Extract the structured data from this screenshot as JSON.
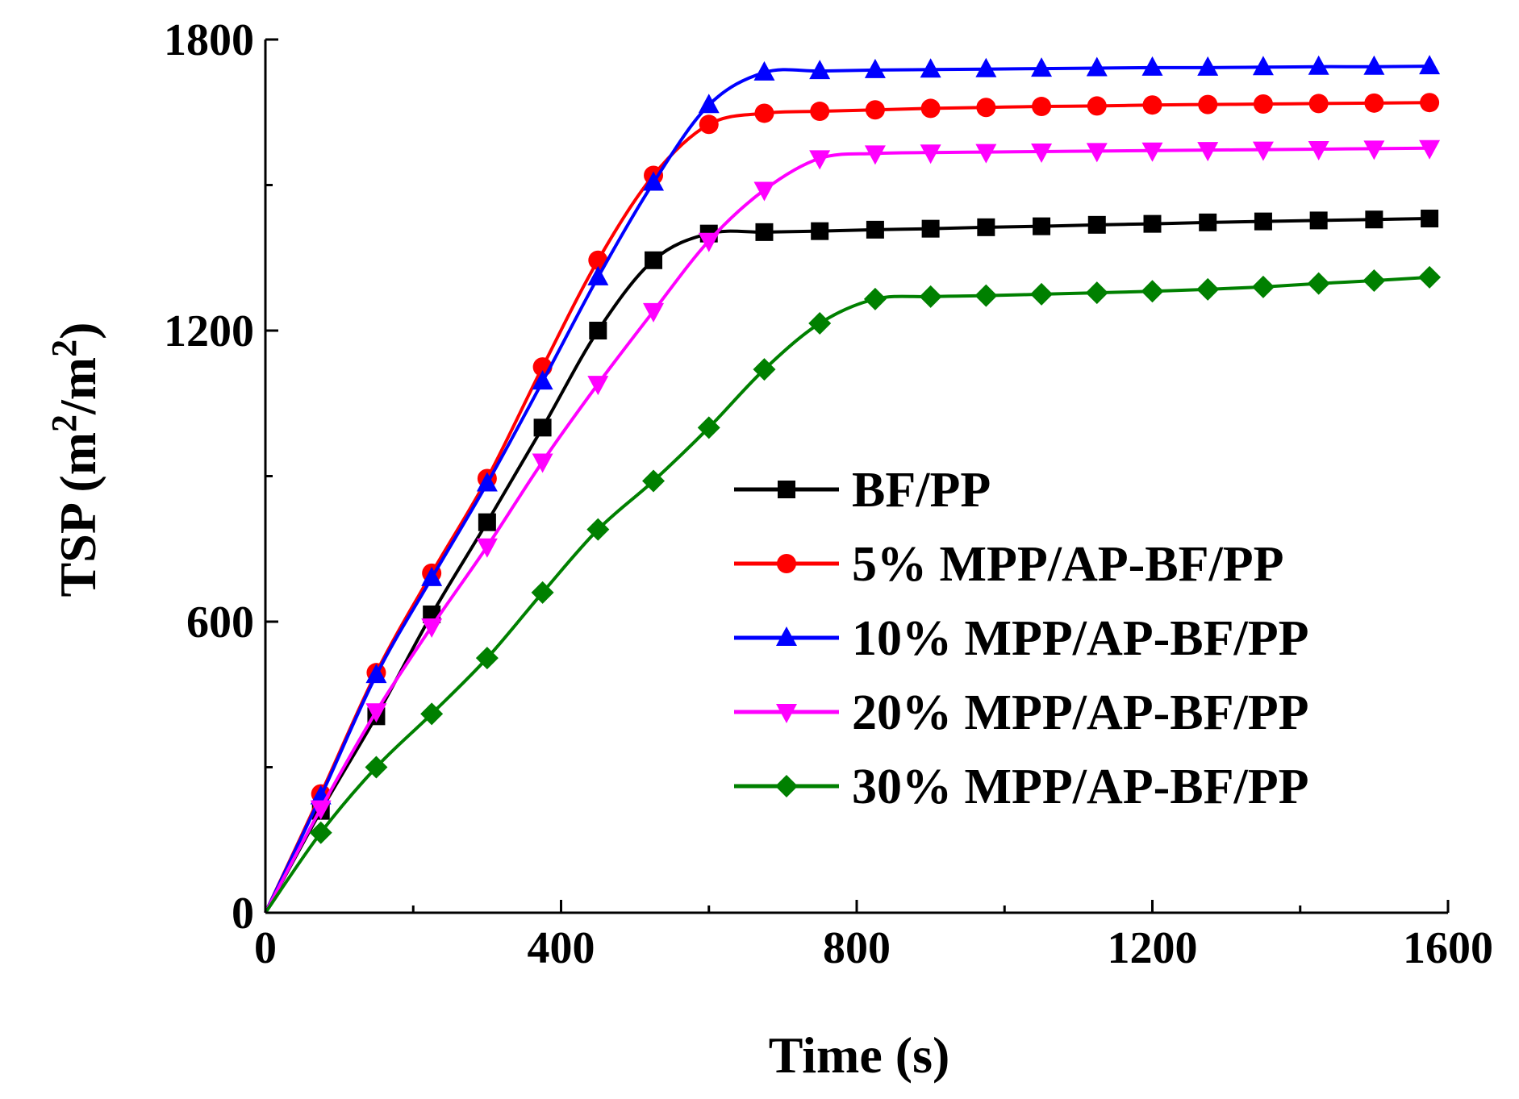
{
  "chart_data": {
    "type": "line",
    "title": "",
    "xlabel": "Time (s)",
    "ylabel_text": "TSP (m",
    "ylabel_sup1": "2",
    "ylabel_mid": "/m",
    "ylabel_sup2": "2",
    "ylabel_end": ")",
    "xlim": [
      0,
      1600
    ],
    "ylim": [
      0,
      1800
    ],
    "xticks": [
      0,
      400,
      800,
      1200,
      1600
    ],
    "xtick_labels": [
      "0",
      "400",
      "800",
      "1200",
      "1600"
    ],
    "yticks": [
      0,
      600,
      1200,
      1800
    ],
    "ytick_labels": [
      "0",
      "600",
      "1200",
      "1800"
    ],
    "grid": false,
    "legend_position": "center-right",
    "x": [
      0,
      75,
      150,
      225,
      300,
      375,
      450,
      525,
      600,
      675,
      750,
      825,
      900,
      975,
      1050,
      1125,
      1200,
      1275,
      1350,
      1425,
      1500,
      1575
    ],
    "series": [
      {
        "name": "BF/PP",
        "color": "#000000",
        "marker": "square",
        "values": [
          0,
          210,
          405,
          615,
          805,
          1000,
          1200,
          1345,
          1400,
          1403,
          1405,
          1408,
          1410,
          1413,
          1415,
          1418,
          1420,
          1423,
          1425,
          1427,
          1429,
          1431
        ]
      },
      {
        "name": "5% MPP/AP-BF/PP",
        "color": "#ff0000",
        "marker": "circle",
        "values": [
          0,
          245,
          495,
          700,
          895,
          1125,
          1345,
          1520,
          1625,
          1648,
          1652,
          1655,
          1658,
          1660,
          1662,
          1663,
          1665,
          1666,
          1667,
          1668,
          1669,
          1670
        ]
      },
      {
        "name": "10% MPP/AP-BF/PP",
        "color": "#0000ff",
        "marker": "triangle-up",
        "values": [
          0,
          240,
          490,
          690,
          885,
          1095,
          1310,
          1505,
          1665,
          1732,
          1735,
          1737,
          1738,
          1739,
          1740,
          1741,
          1742,
          1742,
          1743,
          1744,
          1744,
          1745
        ]
      },
      {
        "name": "20% MPP/AP-BF/PP",
        "color": "#ff00ff",
        "marker": "triangle-down",
        "values": [
          0,
          215,
          415,
          590,
          755,
          930,
          1090,
          1240,
          1385,
          1490,
          1555,
          1565,
          1567,
          1568,
          1569,
          1570,
          1571,
          1572,
          1573,
          1574,
          1575,
          1576
        ]
      },
      {
        "name": "30% MPP/AP-BF/PP",
        "color": "#008000",
        "marker": "diamond",
        "values": [
          0,
          165,
          300,
          410,
          525,
          660,
          790,
          890,
          1000,
          1120,
          1215,
          1265,
          1270,
          1272,
          1275,
          1278,
          1281,
          1285,
          1290,
          1297,
          1303,
          1310
        ]
      }
    ]
  }
}
